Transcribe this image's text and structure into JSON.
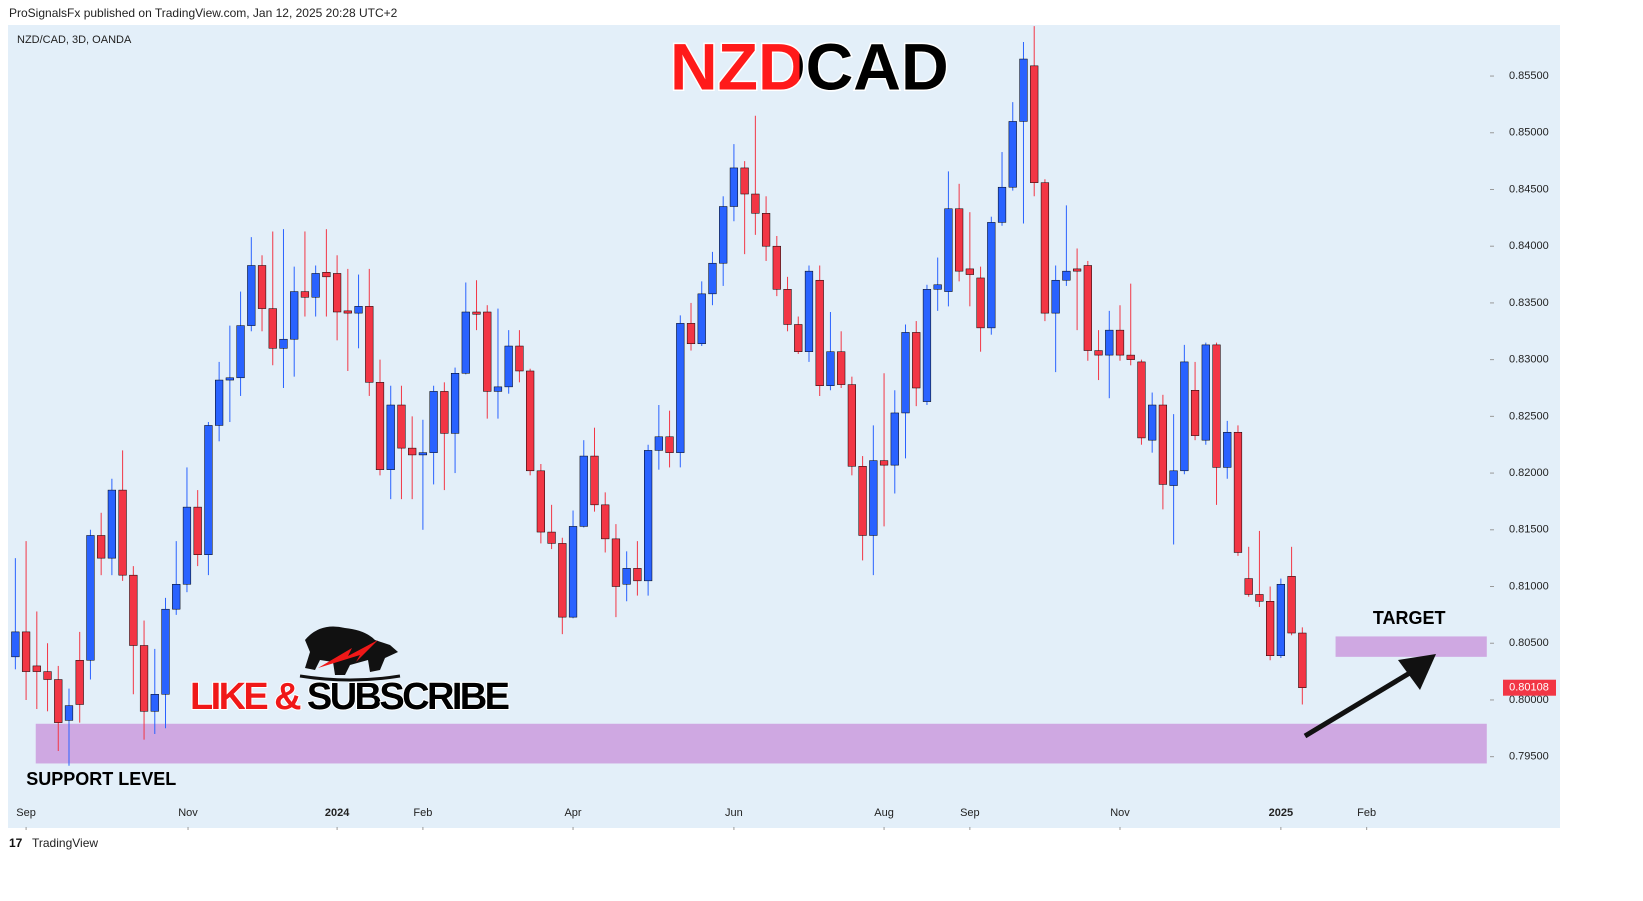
{
  "header": "ProSignalsFx published on TradingView.com, Jan 12, 2025 20:28 UTC+2",
  "footer": "TradingView",
  "chart_data": {
    "type": "candlestick",
    "title": "NZDCAD",
    "symbol_label": "NZD/CAD, 3D, OANDA",
    "promo": "LIKE & SUBSCRIBE",
    "up_color": "#2962ff",
    "down_color": "#f23645",
    "zone_color": "#cfa8e2",
    "xlim": [
      -0.5,
      137.5
    ],
    "xticks": [
      {
        "value": 1,
        "label": "Sep"
      },
      {
        "value": 16.1,
        "label": "Nov"
      },
      {
        "value": 30,
        "label": "2024"
      },
      {
        "value": 38,
        "label": "Feb"
      },
      {
        "value": 52,
        "label": "Apr"
      },
      {
        "value": 67,
        "label": "Jun"
      },
      {
        "value": 81,
        "label": "Aug"
      },
      {
        "value": 89,
        "label": "Sep"
      },
      {
        "value": 103,
        "label": "Nov"
      },
      {
        "value": 118,
        "label": "2025"
      },
      {
        "value": 126,
        "label": "Feb"
      }
    ],
    "ylim": [
      0.7888,
      0.8595
    ],
    "yticks": [
      {
        "value": 0.795,
        "label": "0.79500"
      },
      {
        "value": 0.8,
        "label": "0.80000"
      },
      {
        "value": 0.805,
        "label": "0.80500"
      },
      {
        "value": 0.81,
        "label": "0.81000"
      },
      {
        "value": 0.815,
        "label": "0.81500"
      },
      {
        "value": 0.82,
        "label": "0.82000"
      },
      {
        "value": 0.825,
        "label": "0.82500"
      },
      {
        "value": 0.83,
        "label": "0.83000"
      },
      {
        "value": 0.835,
        "label": "0.83500"
      },
      {
        "value": 0.84,
        "label": "0.84000"
      },
      {
        "value": 0.845,
        "label": "0.84500"
      },
      {
        "value": 0.85,
        "label": "0.85000"
      },
      {
        "value": 0.855,
        "label": "0.85500"
      }
    ],
    "zones": [
      {
        "label": "SUPPORT LEVEL",
        "low": 0.7944,
        "high": 0.7979,
        "start": 1.9,
        "end": 137.2
      },
      {
        "label": "TARGET",
        "low": 0.8038,
        "high": 0.8056,
        "start": 123.1,
        "end": 137.2
      }
    ],
    "open": [
      0.8038,
      0.806,
      0.803,
      0.8025,
      0.8018,
      0.7982,
      0.8035,
      0.8035,
      0.8145,
      0.8125,
      0.8185,
      0.811,
      0.8048,
      0.799,
      0.8005,
      0.808,
      0.8102,
      0.817,
      0.8128,
      0.8242,
      0.8282,
      0.8284,
      0.833,
      0.8383,
      0.8345,
      0.831,
      0.8318,
      0.836,
      0.8355,
      0.8377,
      0.8376,
      0.8343,
      0.8341,
      0.8347,
      0.828,
      0.8203,
      0.826,
      0.8222,
      0.8216,
      0.8218,
      0.8272,
      0.8235,
      0.8288,
      0.8342,
      0.8342,
      0.8272,
      0.8276,
      0.8312,
      0.829,
      0.8202,
      0.8148,
      0.8138,
      0.8073,
      0.8153,
      0.8215,
      0.8172,
      0.8142,
      0.8102,
      0.8116,
      0.8105,
      0.822,
      0.8232,
      0.8218,
      0.8332,
      0.8314,
      0.8358,
      0.8385,
      0.8435,
      0.8469,
      0.8446,
      0.8429,
      0.84,
      0.8362,
      0.8331,
      0.8307,
      0.837,
      0.8277,
      0.8307,
      0.8278,
      0.8206,
      0.8145,
      0.8211,
      0.8207,
      0.8253,
      0.8324,
      0.8263,
      0.8362,
      0.836,
      0.8433,
      0.838,
      0.8372,
      0.8328,
      0.8421,
      0.8452,
      0.851,
      0.8559,
      0.8456,
      0.8341,
      0.837,
      0.838,
      0.8383,
      0.8308,
      0.8304,
      0.8326,
      0.8304,
      0.8298,
      0.8229,
      0.826,
      0.8189,
      0.8202,
      0.8273,
      0.8229,
      0.8313,
      0.8205,
      0.8236,
      0.8107,
      0.8093,
      0.8087,
      0.8039,
      0.8109,
      0.8059
    ],
    "high": [
      0.8125,
      0.814,
      0.8078,
      0.805,
      0.803,
      0.801,
      0.806,
      0.815,
      0.8165,
      0.8195,
      0.822,
      0.8118,
      0.807,
      0.8045,
      0.809,
      0.814,
      0.8205,
      0.8185,
      0.8245,
      0.8298,
      0.833,
      0.836,
      0.8408,
      0.8392,
      0.8413,
      0.8415,
      0.8382,
      0.8413,
      0.8383,
      0.8415,
      0.8392,
      0.838,
      0.8375,
      0.838,
      0.83,
      0.8277,
      0.8277,
      0.825,
      0.8247,
      0.8277,
      0.828,
      0.8293,
      0.8368,
      0.837,
      0.8348,
      0.8345,
      0.8326,
      0.8326,
      0.8292,
      0.8208,
      0.8172,
      0.8143,
      0.8167,
      0.8229,
      0.824,
      0.8183,
      0.8155,
      0.8131,
      0.814,
      0.8225,
      0.826,
      0.8255,
      0.8339,
      0.835,
      0.8369,
      0.8395,
      0.8444,
      0.849,
      0.8475,
      0.8515,
      0.8444,
      0.8409,
      0.8373,
      0.8338,
      0.8383,
      0.8383,
      0.8342,
      0.8325,
      0.8285,
      0.8215,
      0.8242,
      0.8288,
      0.8273,
      0.8331,
      0.8334,
      0.8366,
      0.839,
      0.8466,
      0.8455,
      0.843,
      0.8382,
      0.8426,
      0.8483,
      0.8527,
      0.858,
      0.8594,
      0.8459,
      0.8383,
      0.8436,
      0.8398,
      0.8387,
      0.8326,
      0.8343,
      0.8348,
      0.8367,
      0.83,
      0.8271,
      0.8269,
      0.8252,
      0.8313,
      0.8298,
      0.8315,
      0.8315,
      0.8246,
      0.8242,
      0.8135,
      0.8149,
      0.81,
      0.8107,
      0.8135,
      0.8064
    ],
    "low": [
      0.8027,
      0.8,
      0.7992,
      0.799,
      0.7955,
      0.7942,
      0.798,
      0.8018,
      0.811,
      0.811,
      0.8105,
      0.8005,
      0.7965,
      0.797,
      0.7975,
      0.8075,
      0.8095,
      0.8118,
      0.811,
      0.8228,
      0.8245,
      0.8268,
      0.8325,
      0.8325,
      0.8295,
      0.8275,
      0.8285,
      0.8338,
      0.8338,
      0.8338,
      0.8317,
      0.829,
      0.831,
      0.8268,
      0.8198,
      0.8177,
      0.8177,
      0.8177,
      0.815,
      0.819,
      0.8185,
      0.82,
      0.8287,
      0.8326,
      0.8248,
      0.8248,
      0.827,
      0.828,
      0.8198,
      0.8138,
      0.8133,
      0.8058,
      0.8072,
      0.8152,
      0.8166,
      0.813,
      0.8073,
      0.8087,
      0.8092,
      0.8092,
      0.8203,
      0.8205,
      0.8205,
      0.8308,
      0.8312,
      0.8348,
      0.8365,
      0.8422,
      0.8393,
      0.841,
      0.8387,
      0.8356,
      0.8325,
      0.8305,
      0.8298,
      0.8268,
      0.8273,
      0.8275,
      0.8198,
      0.8123,
      0.811,
      0.8153,
      0.8182,
      0.8213,
      0.8259,
      0.826,
      0.8343,
      0.8347,
      0.8369,
      0.8347,
      0.8307,
      0.8322,
      0.8418,
      0.8449,
      0.842,
      0.8444,
      0.8334,
      0.8289,
      0.8365,
      0.8326,
      0.8299,
      0.8282,
      0.8266,
      0.8299,
      0.8295,
      0.8225,
      0.8218,
      0.8168,
      0.8137,
      0.8199,
      0.8229,
      0.8225,
      0.8172,
      0.8195,
      0.8127,
      0.8091,
      0.8082,
      0.8035,
      0.8037,
      0.8057,
      0.7996
    ],
    "close": [
      0.806,
      0.8025,
      0.8025,
      0.8018,
      0.798,
      0.7995,
      0.7996,
      0.8145,
      0.8125,
      0.8185,
      0.811,
      0.8048,
      0.799,
      0.8005,
      0.808,
      0.8102,
      0.817,
      0.8128,
      0.8242,
      0.8282,
      0.8284,
      0.833,
      0.8383,
      0.8345,
      0.831,
      0.8318,
      0.836,
      0.8355,
      0.8376,
      0.8373,
      0.8342,
      0.8341,
      0.8347,
      0.828,
      0.8203,
      0.826,
      0.8222,
      0.8216,
      0.8218,
      0.8272,
      0.8235,
      0.8288,
      0.8342,
      0.834,
      0.8272,
      0.8276,
      0.8312,
      0.829,
      0.8202,
      0.8148,
      0.8138,
      0.8073,
      0.8153,
      0.8215,
      0.8172,
      0.8142,
      0.81,
      0.8116,
      0.8105,
      0.822,
      0.8232,
      0.8218,
      0.8332,
      0.8314,
      0.8358,
      0.8385,
      0.8435,
      0.8469,
      0.8446,
      0.8429,
      0.84,
      0.8362,
      0.8331,
      0.8307,
      0.8378,
      0.8277,
      0.8307,
      0.8278,
      0.8206,
      0.8145,
      0.8211,
      0.8207,
      0.8253,
      0.8324,
      0.8275,
      0.8362,
      0.8366,
      0.8433,
      0.8378,
      0.8375,
      0.8328,
      0.8421,
      0.8452,
      0.851,
      0.8565,
      0.8456,
      0.8341,
      0.837,
      0.8378,
      0.8378,
      0.8308,
      0.8304,
      0.8326,
      0.8304,
      0.83,
      0.8231,
      0.826,
      0.819,
      0.8202,
      0.8298,
      0.8233,
      0.8313,
      0.8205,
      0.8236,
      0.813,
      0.8093,
      0.8087,
      0.8039,
      0.8102,
      0.8059,
      0.80108
    ]
  }
}
